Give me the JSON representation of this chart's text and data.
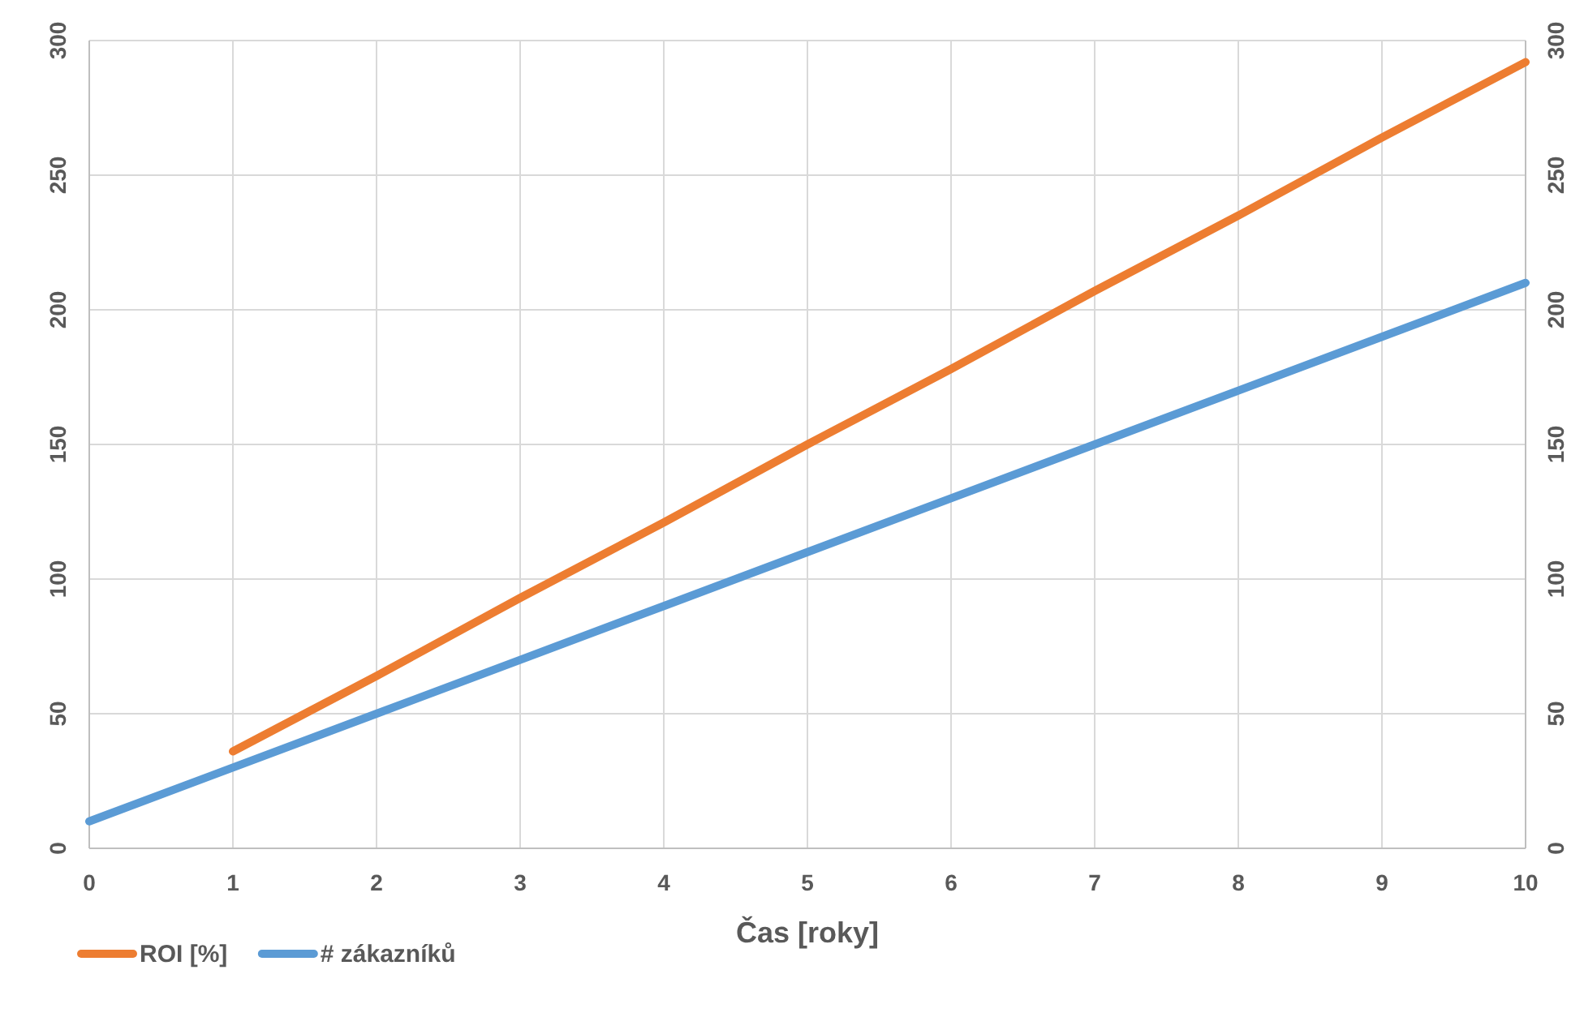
{
  "chart_data": {
    "type": "line",
    "xlabel": "Čas [roky]",
    "x": [
      0,
      1,
      2,
      3,
      4,
      5,
      6,
      7,
      8,
      9,
      10
    ],
    "series": [
      {
        "name": "ROI [%]",
        "color": "#ed7d31",
        "values": [
          null,
          36,
          64,
          93,
          121,
          150,
          178,
          207,
          235,
          264,
          292
        ]
      },
      {
        "name": "# zákazníků",
        "color": "#5b9bd5",
        "values": [
          10,
          30,
          50,
          70,
          90,
          110,
          130,
          150,
          170,
          190,
          210
        ]
      }
    ],
    "xlim": [
      0,
      10
    ],
    "xticks": [
      0,
      1,
      2,
      3,
      4,
      5,
      6,
      7,
      8,
      9,
      10
    ],
    "ylim": [
      0,
      300
    ],
    "yticks": [
      0,
      50,
      100,
      150,
      200,
      250,
      300
    ],
    "y2lim": [
      0,
      300
    ],
    "y2ticks": [
      0,
      50,
      100,
      150,
      200,
      250,
      300
    ],
    "grid": true,
    "legend": "bottom left",
    "marker": "none",
    "line_style": "solid"
  }
}
